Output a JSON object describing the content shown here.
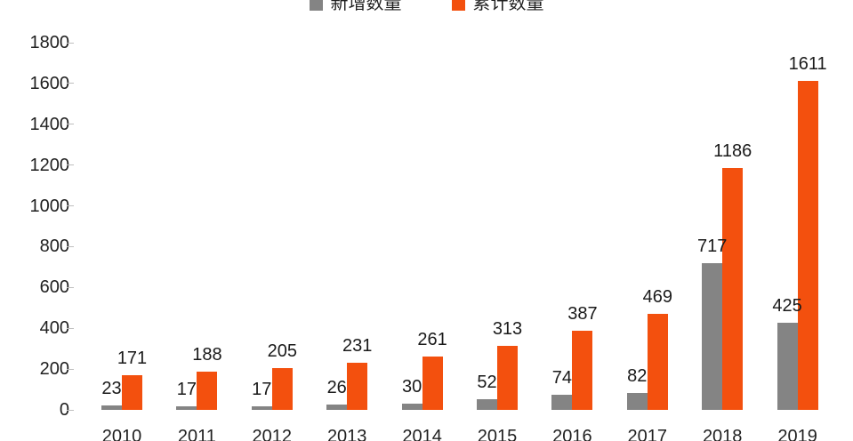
{
  "chart_data": {
    "type": "bar",
    "title": "",
    "categories": [
      "2010",
      "2011",
      "2012",
      "2013",
      "2014",
      "2015",
      "2016",
      "2017",
      "2018",
      "2019"
    ],
    "series": [
      {
        "key": "new",
        "name": "新增数量",
        "color": "#848484",
        "values": [
          23,
          17,
          17,
          26,
          30,
          52,
          74,
          82,
          717,
          425
        ]
      },
      {
        "key": "cumulative",
        "name": "累计数量",
        "color": "#F3500E",
        "values": [
          171,
          188,
          205,
          231,
          261,
          313,
          387,
          469,
          1186,
          1611
        ]
      }
    ],
    "xlabel": "",
    "ylabel": "",
    "ylim": [
      0,
      1800
    ],
    "yticks": [
      0,
      200,
      400,
      600,
      800,
      1000,
      1200,
      1400,
      1600,
      1800
    ],
    "legend_position": "top",
    "grid": false,
    "data_labels": "outside-end",
    "axis_text_color": "#1f1f1f",
    "tick_color": "#bfbfbf"
  }
}
